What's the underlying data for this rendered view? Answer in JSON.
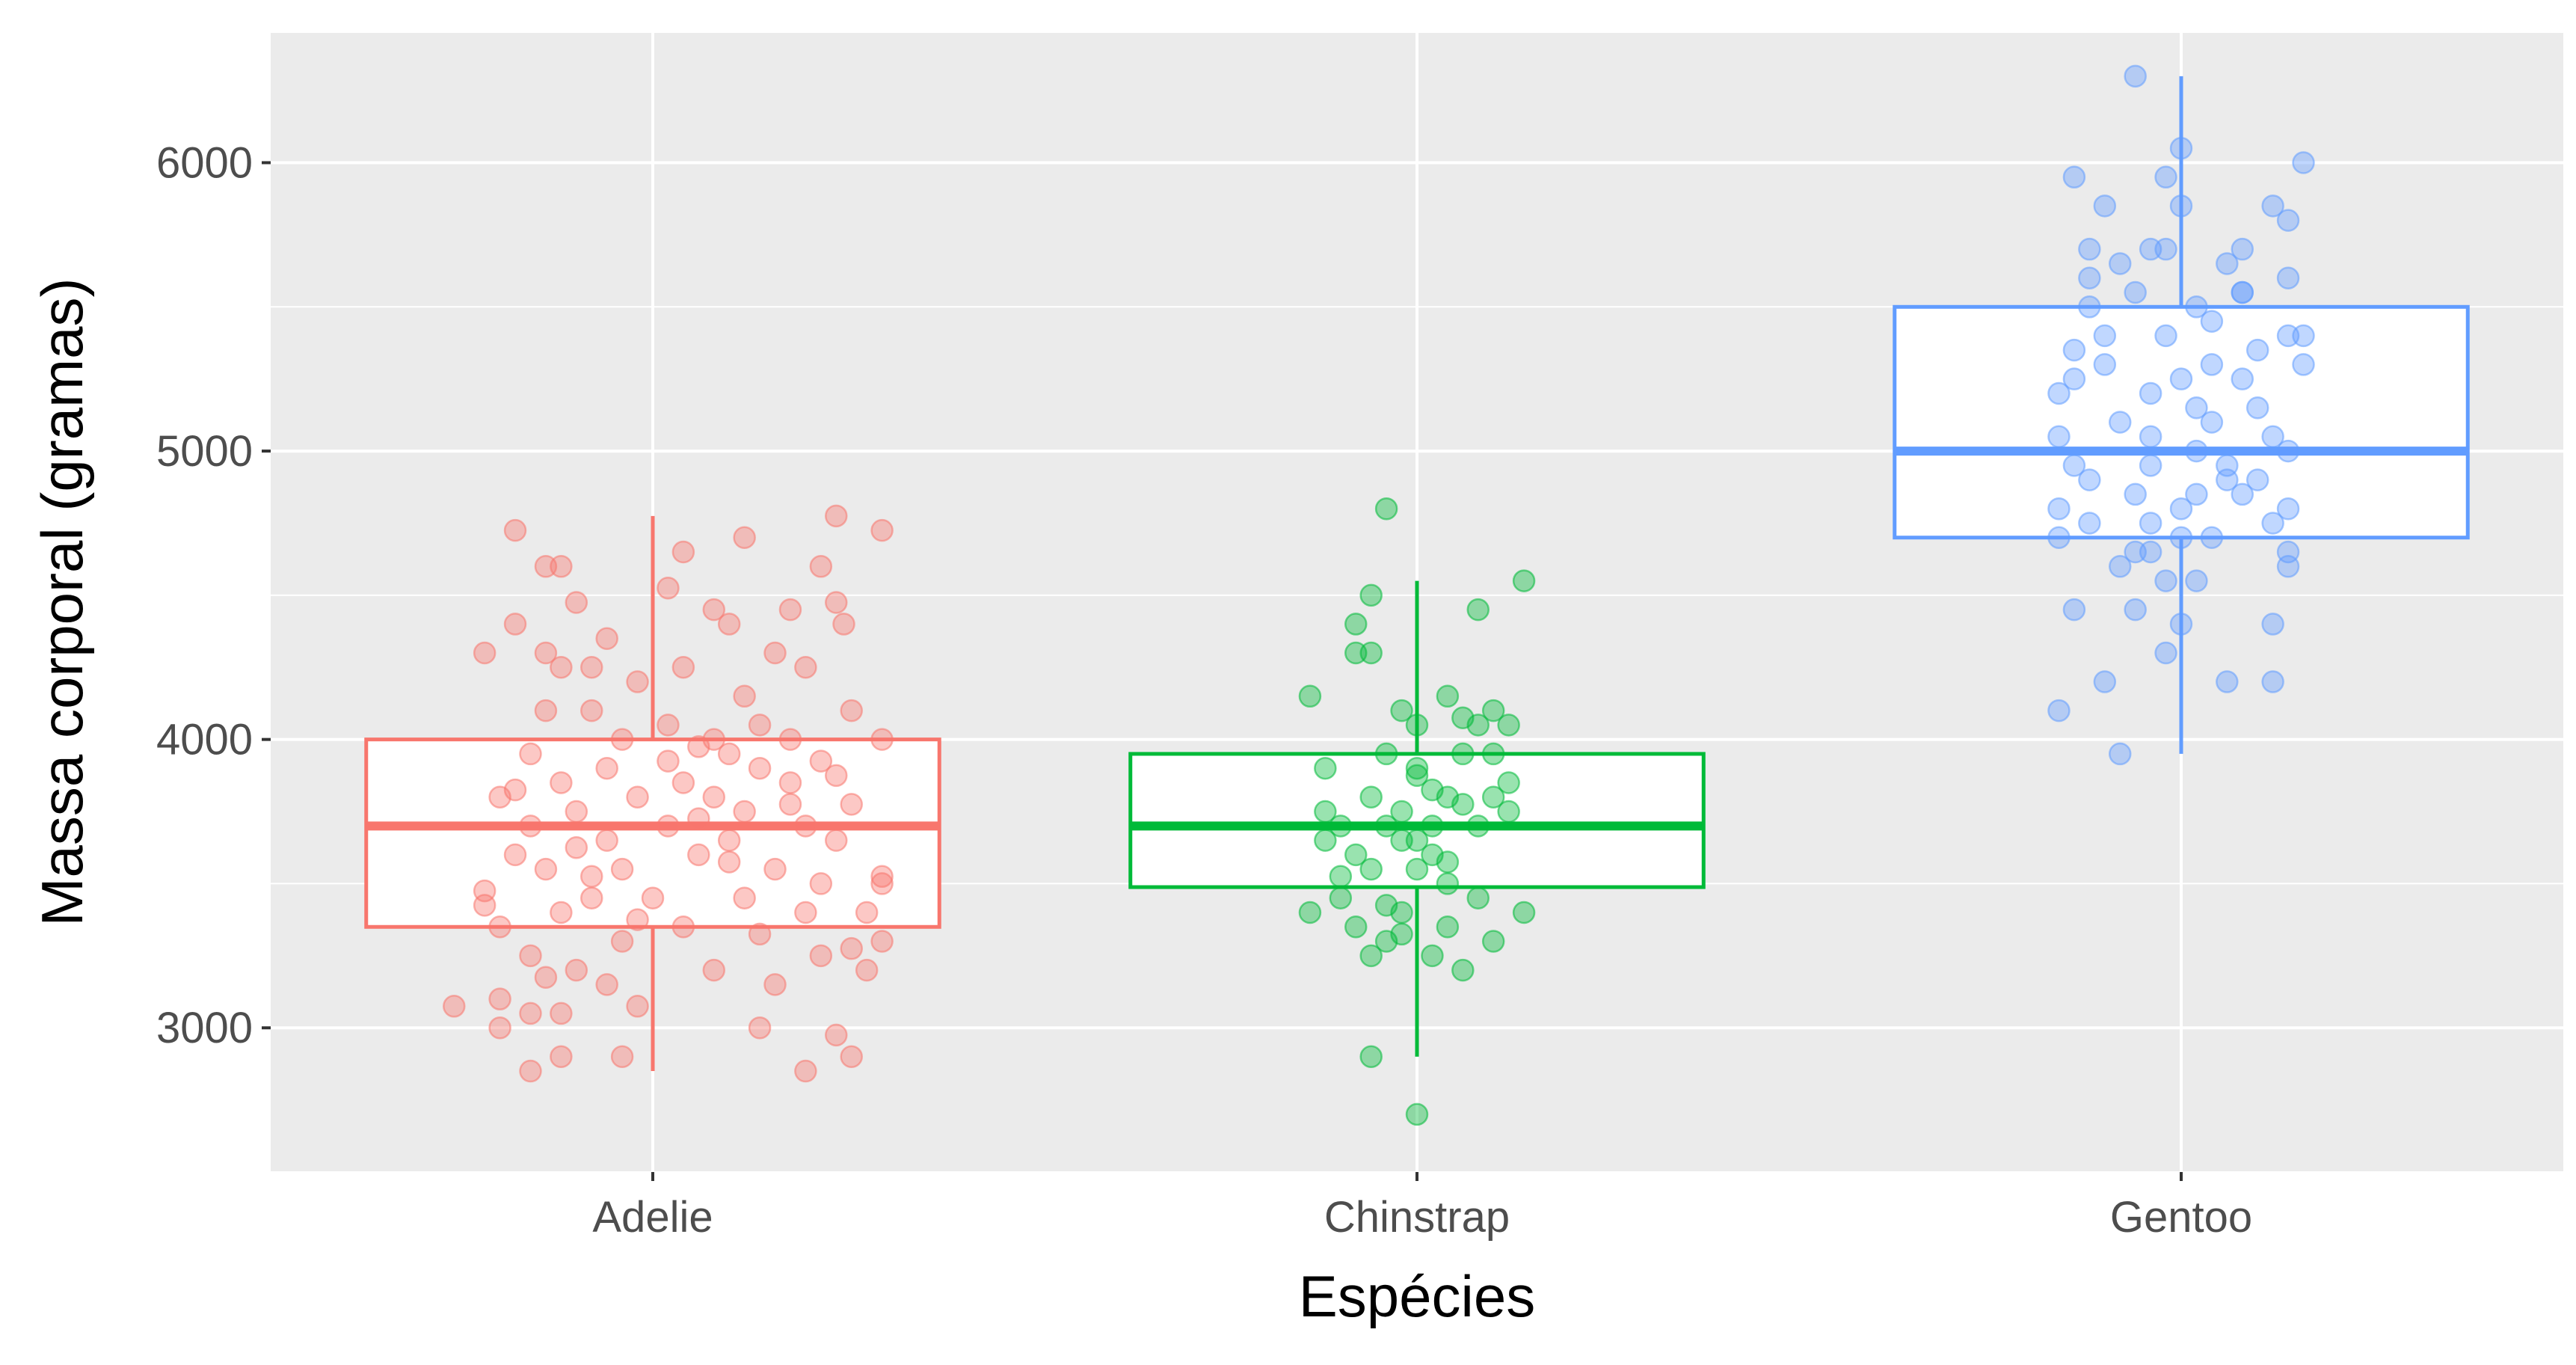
{
  "chart_data": {
    "type": "boxplot",
    "title": "",
    "xlabel": "Espécies",
    "ylabel": "Massa corporal (gramas)",
    "categories": [
      "Adelie",
      "Chinstrap",
      "Gentoo"
    ],
    "ylim": [
      2500,
      6450
    ],
    "yticks": [
      3000,
      4000,
      5000,
      6000
    ],
    "grid": true,
    "legend": "none",
    "background": "#EBEBEB",
    "colors": {
      "Adelie": "#F8766D",
      "Chinstrap": "#00BA38",
      "Gentoo": "#619CFF"
    },
    "series": [
      {
        "category": "Adelie",
        "box": {
          "min": 2850,
          "q1": 3350,
          "median": 3700,
          "q3": 4000,
          "max": 4775
        },
        "points": [
          [
            -0.18,
            4725
          ],
          [
            0.12,
            4700
          ],
          [
            0.24,
            4775
          ],
          [
            0.3,
            4725
          ],
          [
            -0.12,
            4600
          ],
          [
            -0.14,
            4600
          ],
          [
            0.04,
            4650
          ],
          [
            0.22,
            4600
          ],
          [
            -0.1,
            4475
          ],
          [
            0.02,
            4525
          ],
          [
            0.08,
            4450
          ],
          [
            0.18,
            4450
          ],
          [
            0.25,
            4400
          ],
          [
            0.24,
            4475
          ],
          [
            -0.18,
            4400
          ],
          [
            -0.06,
            4350
          ],
          [
            0.1,
            4400
          ],
          [
            -0.14,
            4300
          ],
          [
            -0.22,
            4300
          ],
          [
            0.16,
            4300
          ],
          [
            0.04,
            4250
          ],
          [
            -0.08,
            4250
          ],
          [
            -0.12,
            4250
          ],
          [
            0.2,
            4250
          ],
          [
            -0.02,
            4200
          ],
          [
            0.12,
            4150
          ],
          [
            0.26,
            4100
          ],
          [
            -0.14,
            4100
          ],
          [
            -0.08,
            4100
          ],
          [
            0.02,
            4050
          ],
          [
            0.18,
            4000
          ],
          [
            0.3,
            4000
          ],
          [
            -0.04,
            4000
          ],
          [
            0.06,
            3975
          ],
          [
            -0.16,
            3950
          ],
          [
            0.1,
            3950
          ],
          [
            -0.06,
            3900
          ],
          [
            0.14,
            3900
          ],
          [
            0.22,
            3925
          ],
          [
            0.04,
            3850
          ],
          [
            -0.12,
            3850
          ],
          [
            0.18,
            3850
          ],
          [
            -0.2,
            3800
          ],
          [
            -0.02,
            3800
          ],
          [
            0.08,
            3800
          ],
          [
            0.26,
            3775
          ],
          [
            0.12,
            3750
          ],
          [
            -0.1,
            3750
          ],
          [
            -0.16,
            3700
          ],
          [
            0.02,
            3700
          ],
          [
            0.2,
            3700
          ],
          [
            -0.06,
            3650
          ],
          [
            0.1,
            3650
          ],
          [
            0.24,
            3650
          ],
          [
            -0.18,
            3600
          ],
          [
            0.06,
            3600
          ],
          [
            0.16,
            3550
          ],
          [
            -0.04,
            3550
          ],
          [
            -0.14,
            3550
          ],
          [
            0.22,
            3500
          ],
          [
            0.3,
            3500
          ],
          [
            -0.22,
            3475
          ],
          [
            0.0,
            3450
          ],
          [
            0.12,
            3450
          ],
          [
            -0.08,
            3450
          ],
          [
            0.2,
            3400
          ],
          [
            -0.12,
            3400
          ],
          [
            0.28,
            3400
          ],
          [
            -0.2,
            3350
          ],
          [
            0.04,
            3350
          ],
          [
            0.14,
            3325
          ],
          [
            -0.04,
            3300
          ],
          [
            0.3,
            3300
          ],
          [
            -0.16,
            3250
          ],
          [
            0.22,
            3250
          ],
          [
            0.08,
            3200
          ],
          [
            -0.1,
            3200
          ],
          [
            0.28,
            3200
          ],
          [
            -0.06,
            3150
          ],
          [
            0.16,
            3150
          ],
          [
            -0.2,
            3100
          ],
          [
            -0.02,
            3075
          ],
          [
            0.14,
            3000
          ],
          [
            -0.16,
            3050
          ],
          [
            -0.12,
            3050
          ],
          [
            -0.2,
            3000
          ],
          [
            0.24,
            2975
          ],
          [
            -0.04,
            2900
          ],
          [
            -0.12,
            2900
          ],
          [
            0.26,
            2900
          ],
          [
            -0.16,
            2850
          ],
          [
            0.2,
            2850
          ],
          [
            -0.26,
            3075
          ],
          [
            0.3,
            3525
          ],
          [
            0.08,
            4000
          ],
          [
            -0.22,
            3425
          ],
          [
            0.18,
            3775
          ],
          [
            -0.1,
            3625
          ],
          [
            0.26,
            3275
          ],
          [
            -0.02,
            3375
          ],
          [
            0.1,
            3575
          ],
          [
            -0.18,
            3825
          ],
          [
            0.02,
            3925
          ],
          [
            -0.08,
            3525
          ],
          [
            0.14,
            4050
          ],
          [
            -0.14,
            3175
          ],
          [
            0.24,
            3875
          ],
          [
            0.06,
            3725
          ]
        ]
      },
      {
        "category": "Chinstrap",
        "box": {
          "min": 2900,
          "q1": 3488,
          "median": 3700,
          "q3": 3950,
          "max": 4550
        },
        "points": [
          [
            -0.04,
            4800
          ],
          [
            0.14,
            4550
          ],
          [
            0.08,
            4450
          ],
          [
            -0.06,
            4500
          ],
          [
            -0.08,
            4400
          ],
          [
            -0.06,
            4300
          ],
          [
            -0.08,
            4300
          ],
          [
            0.1,
            4100
          ],
          [
            0.12,
            4050
          ],
          [
            0.04,
            4150
          ],
          [
            -0.14,
            4150
          ],
          [
            -0.02,
            4100
          ],
          [
            0.0,
            4050
          ],
          [
            0.08,
            4050
          ],
          [
            0.1,
            3950
          ],
          [
            0.06,
            3950
          ],
          [
            -0.04,
            3950
          ],
          [
            0.0,
            3900
          ],
          [
            -0.12,
            3900
          ],
          [
            0.04,
            3800
          ],
          [
            -0.06,
            3800
          ],
          [
            0.12,
            3750
          ],
          [
            -0.02,
            3750
          ],
          [
            0.1,
            3800
          ],
          [
            -0.1,
            3700
          ],
          [
            0.0,
            3650
          ],
          [
            0.02,
            3700
          ],
          [
            -0.04,
            3700
          ],
          [
            -0.12,
            3650
          ],
          [
            0.02,
            3600
          ],
          [
            -0.08,
            3600
          ],
          [
            0.0,
            3550
          ],
          [
            0.04,
            3500
          ],
          [
            -0.06,
            3550
          ],
          [
            0.08,
            3450
          ],
          [
            -0.1,
            3450
          ],
          [
            0.14,
            3400
          ],
          [
            -0.02,
            3400
          ],
          [
            0.04,
            3350
          ],
          [
            -0.04,
            3300
          ],
          [
            -0.14,
            3400
          ],
          [
            -0.06,
            3250
          ],
          [
            0.02,
            3250
          ],
          [
            0.1,
            3300
          ],
          [
            0.06,
            3200
          ],
          [
            -0.06,
            2900
          ],
          [
            0.0,
            2700
          ],
          [
            -0.02,
            3650
          ],
          [
            0.06,
            3775
          ],
          [
            -0.1,
            3525
          ],
          [
            0.12,
            3850
          ],
          [
            -0.04,
            3425
          ],
          [
            0.02,
            3825
          ],
          [
            -0.08,
            3350
          ],
          [
            0.08,
            3700
          ],
          [
            -0.12,
            3750
          ],
          [
            0.04,
            3575
          ],
          [
            -0.02,
            3325
          ],
          [
            0.0,
            3875
          ],
          [
            0.06,
            4075
          ]
        ]
      },
      {
        "category": "Gentoo",
        "box": {
          "min": 3950,
          "q1": 4700,
          "median": 5000,
          "q3": 5500,
          "max": 6300
        },
        "points": [
          [
            -0.06,
            6300
          ],
          [
            0.0,
            6050
          ],
          [
            -0.14,
            5950
          ],
          [
            -0.02,
            5950
          ],
          [
            0.16,
            6000
          ],
          [
            0.12,
            5850
          ],
          [
            -0.1,
            5850
          ],
          [
            0.0,
            5850
          ],
          [
            0.14,
            5800
          ],
          [
            -0.04,
            5700
          ],
          [
            0.08,
            5700
          ],
          [
            -0.12,
            5700
          ],
          [
            -0.08,
            5650
          ],
          [
            0.06,
            5650
          ],
          [
            0.14,
            5600
          ],
          [
            0.08,
            5550
          ],
          [
            -0.06,
            5550
          ],
          [
            -0.12,
            5500
          ],
          [
            0.02,
            5500
          ],
          [
            -0.02,
            5400
          ],
          [
            0.14,
            5400
          ],
          [
            0.1,
            5350
          ],
          [
            -0.14,
            5350
          ],
          [
            -0.1,
            5300
          ],
          [
            0.04,
            5300
          ],
          [
            0.0,
            5250
          ],
          [
            -0.04,
            5200
          ],
          [
            -0.16,
            5200
          ],
          [
            0.1,
            5150
          ],
          [
            0.04,
            5100
          ],
          [
            -0.04,
            5050
          ],
          [
            0.14,
            5000
          ],
          [
            -0.16,
            5050
          ],
          [
            0.02,
            5000
          ],
          [
            -0.14,
            4950
          ],
          [
            -0.04,
            4950
          ],
          [
            0.06,
            4900
          ],
          [
            -0.12,
            4900
          ],
          [
            0.08,
            4850
          ],
          [
            -0.06,
            4850
          ],
          [
            -0.16,
            4800
          ],
          [
            0.0,
            4800
          ],
          [
            0.12,
            4750
          ],
          [
            -0.12,
            4750
          ],
          [
            0.04,
            4700
          ],
          [
            -0.16,
            4700
          ],
          [
            0.14,
            4650
          ],
          [
            -0.04,
            4650
          ],
          [
            0.0,
            4700
          ],
          [
            -0.08,
            4600
          ],
          [
            0.14,
            4600
          ],
          [
            0.02,
            4550
          ],
          [
            -0.14,
            4450
          ],
          [
            -0.06,
            4450
          ],
          [
            0.12,
            4400
          ],
          [
            0.0,
            4400
          ],
          [
            -0.02,
            4300
          ],
          [
            0.06,
            4200
          ],
          [
            -0.1,
            4200
          ],
          [
            -0.16,
            4100
          ],
          [
            0.12,
            4200
          ],
          [
            -0.08,
            3950
          ],
          [
            0.08,
            5250
          ],
          [
            -0.02,
            4550
          ],
          [
            0.1,
            4900
          ],
          [
            -0.08,
            5100
          ],
          [
            0.04,
            5450
          ],
          [
            -0.12,
            5600
          ],
          [
            0.16,
            5400
          ],
          [
            -0.06,
            4650
          ],
          [
            0.02,
            5150
          ],
          [
            0.12,
            5050
          ],
          [
            -0.14,
            5250
          ],
          [
            0.06,
            4950
          ],
          [
            -0.04,
            4750
          ],
          [
            0.16,
            5300
          ],
          [
            0.08,
            5550
          ],
          [
            -0.1,
            5400
          ],
          [
            0.02,
            4850
          ],
          [
            0.14,
            4800
          ],
          [
            -0.02,
            5700
          ]
        ]
      }
    ]
  }
}
